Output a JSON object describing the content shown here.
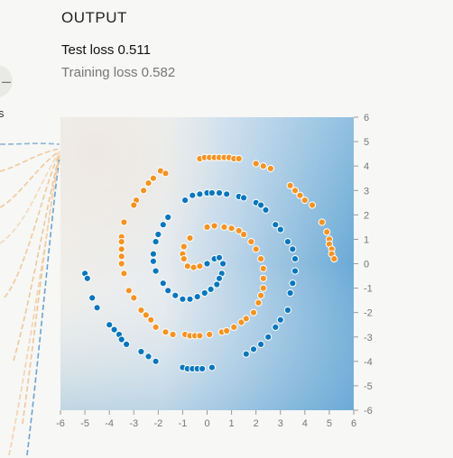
{
  "output": {
    "title": "OUTPUT",
    "test_loss_label": "Test loss",
    "test_loss": "0.511",
    "training_loss_label": "Training loss",
    "training_loss": "0.582"
  },
  "left_panel": {
    "button_icon": "minus-icon",
    "button_glyph": "–",
    "label_fragment": "s"
  },
  "colors": {
    "positive": "#0877bd",
    "negative": "#f59322",
    "background_positive": "#6aaad6",
    "background_negative": "#f0eeea",
    "connection_blue": "#8fb4d6",
    "connection_orange": "#f0c99c"
  },
  "chart_data": {
    "type": "scatter",
    "xlim": [
      -6,
      6
    ],
    "ylim": [
      -6,
      6
    ],
    "x_ticks": [
      "-6",
      "-5",
      "-4",
      "-3",
      "-2",
      "-1",
      "0",
      "1",
      "2",
      "3",
      "4",
      "5",
      "6"
    ],
    "y_ticks": [
      "6",
      "5",
      "4",
      "3",
      "2",
      "1",
      "0",
      "-1",
      "-2",
      "-3",
      "-4",
      "-5",
      "-6"
    ],
    "grid": false,
    "legend": "none",
    "series": [
      {
        "class": "orange",
        "points": [
          [
            -0.3,
            4.3
          ],
          [
            -0.1,
            4.35
          ],
          [
            0.1,
            4.35
          ],
          [
            0.3,
            4.35
          ],
          [
            0.5,
            4.35
          ],
          [
            0.7,
            4.35
          ],
          [
            0.9,
            4.35
          ],
          [
            1.1,
            4.3
          ],
          [
            1.3,
            4.3
          ],
          [
            -1.9,
            3.8
          ],
          [
            -1.7,
            3.7
          ],
          [
            -2.2,
            3.5
          ],
          [
            -2.4,
            3.3
          ],
          [
            -2.6,
            3.0
          ],
          [
            -2.9,
            2.6
          ],
          [
            -3.0,
            2.4
          ],
          [
            2.0,
            4.1
          ],
          [
            2.3,
            4.0
          ],
          [
            2.6,
            3.9
          ],
          [
            3.4,
            3.2
          ],
          [
            3.6,
            3.0
          ],
          [
            3.8,
            2.8
          ],
          [
            4.0,
            2.6
          ],
          [
            4.3,
            2.4
          ],
          [
            -3.4,
            1.7
          ],
          [
            -3.5,
            1.1
          ],
          [
            -3.5,
            0.9
          ],
          [
            -3.5,
            0.6
          ],
          [
            -3.5,
            0.3
          ],
          [
            -3.5,
            0.0
          ],
          [
            -3.4,
            -0.4
          ],
          [
            -3.2,
            -1.1
          ],
          [
            -3.0,
            -1.4
          ],
          [
            4.7,
            1.7
          ],
          [
            4.9,
            1.3
          ],
          [
            5.0,
            1.0
          ],
          [
            5.0,
            0.8
          ],
          [
            5.1,
            0.6
          ],
          [
            5.1,
            0.4
          ],
          [
            5.2,
            0.2
          ],
          [
            -2.7,
            -1.9
          ],
          [
            -2.5,
            -2.1
          ],
          [
            -2.3,
            -2.3
          ],
          [
            -2.1,
            -2.6
          ],
          [
            -1.7,
            -2.8
          ],
          [
            -1.4,
            -2.9
          ],
          [
            -0.9,
            -2.9
          ],
          [
            -0.7,
            -2.95
          ],
          [
            -0.5,
            -2.95
          ],
          [
            -0.3,
            -2.95
          ],
          [
            0.1,
            -2.9
          ],
          [
            0.6,
            -2.8
          ],
          [
            0.8,
            -2.75
          ],
          [
            1.1,
            -2.6
          ],
          [
            1.4,
            -2.4
          ],
          [
            1.6,
            -2.25
          ],
          [
            1.9,
            -2.0
          ],
          [
            2.1,
            -1.6
          ],
          [
            2.2,
            -1.3
          ],
          [
            2.3,
            -1.0
          ],
          [
            2.3,
            -0.6
          ],
          [
            2.3,
            -0.2
          ],
          [
            2.2,
            0.2
          ],
          [
            2.0,
            0.6
          ],
          [
            1.8,
            0.9
          ],
          [
            1.5,
            1.2
          ],
          [
            1.3,
            1.35
          ],
          [
            1.0,
            1.45
          ],
          [
            0.7,
            1.5
          ],
          [
            0.3,
            1.55
          ],
          [
            0.0,
            1.5
          ],
          [
            -0.7,
            1.05
          ],
          [
            -0.95,
            0.7
          ],
          [
            -1.0,
            0.4
          ],
          [
            -0.95,
            0.2
          ],
          [
            -0.8,
            -0.1
          ],
          [
            -0.55,
            -0.15
          ],
          [
            -0.3,
            -0.1
          ]
        ]
      },
      {
        "class": "blue",
        "points": [
          [
            0.0,
            0.0
          ],
          [
            0.3,
            0.2
          ],
          [
            0.5,
            0.25
          ],
          [
            0.65,
            0.0
          ],
          [
            0.6,
            -0.4
          ],
          [
            0.5,
            -0.6
          ],
          [
            0.4,
            -0.85
          ],
          [
            0.15,
            -1.05
          ],
          [
            -0.1,
            -1.2
          ],
          [
            -0.4,
            -1.35
          ],
          [
            -0.7,
            -1.45
          ],
          [
            -1.0,
            -1.45
          ],
          [
            -1.3,
            -1.3
          ],
          [
            -1.6,
            -1.1
          ],
          [
            -1.8,
            -0.8
          ],
          [
            -2.1,
            -0.3
          ],
          [
            -2.2,
            0.1
          ],
          [
            -2.2,
            0.4
          ],
          [
            -2.1,
            0.9
          ],
          [
            -2.0,
            1.2
          ],
          [
            -1.8,
            1.6
          ],
          [
            -1.6,
            1.9
          ],
          [
            -0.9,
            2.6
          ],
          [
            -0.6,
            2.8
          ],
          [
            -0.3,
            2.85
          ],
          [
            0.0,
            2.9
          ],
          [
            0.2,
            2.9
          ],
          [
            0.5,
            2.9
          ],
          [
            0.8,
            2.85
          ],
          [
            1.3,
            2.75
          ],
          [
            1.5,
            2.7
          ],
          [
            2.0,
            2.5
          ],
          [
            2.2,
            2.4
          ],
          [
            2.4,
            2.2
          ],
          [
            2.8,
            1.6
          ],
          [
            3.0,
            1.4
          ],
          [
            3.3,
            0.9
          ],
          [
            3.5,
            0.6
          ],
          [
            3.6,
            0.2
          ],
          [
            3.6,
            -0.3
          ],
          [
            3.5,
            -0.8
          ],
          [
            3.4,
            -1.2
          ],
          [
            3.3,
            -1.9
          ],
          [
            3.0,
            -2.3
          ],
          [
            2.8,
            -2.6
          ],
          [
            2.5,
            -3.0
          ],
          [
            2.2,
            -3.3
          ],
          [
            1.9,
            -3.5
          ],
          [
            1.6,
            -3.7
          ],
          [
            -5.0,
            -0.4
          ],
          [
            -4.9,
            -0.6
          ],
          [
            -4.7,
            -1.4
          ],
          [
            -4.5,
            -1.8
          ],
          [
            -4.0,
            -2.5
          ],
          [
            -3.8,
            -2.7
          ],
          [
            -3.6,
            -2.9
          ],
          [
            -3.5,
            -3.1
          ],
          [
            -3.3,
            -3.3
          ],
          [
            -2.7,
            -3.6
          ],
          [
            -2.4,
            -3.8
          ],
          [
            -2.1,
            -4.0
          ],
          [
            -1.0,
            -4.25
          ],
          [
            -0.8,
            -4.3
          ],
          [
            -0.6,
            -4.3
          ],
          [
            -0.4,
            -4.3
          ],
          [
            -0.2,
            -4.3
          ],
          [
            0.2,
            -4.25
          ]
        ]
      }
    ]
  }
}
